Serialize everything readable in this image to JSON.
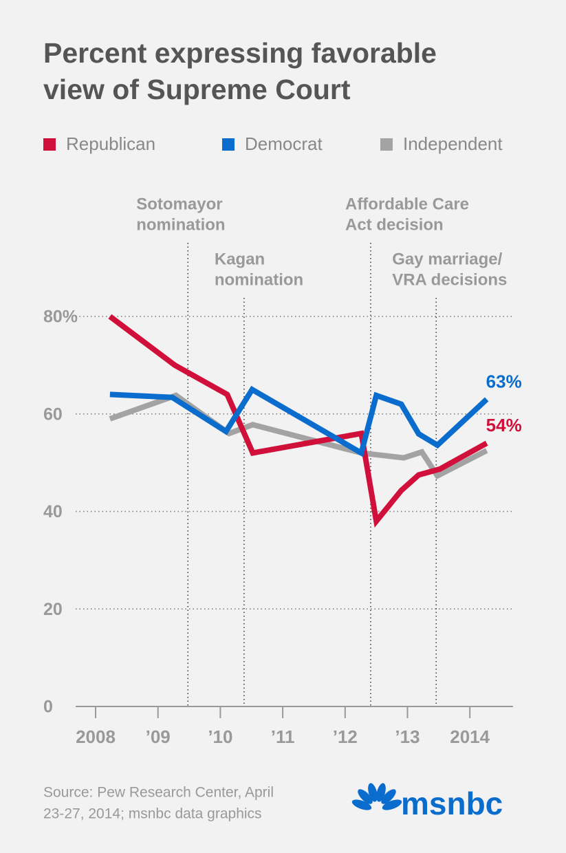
{
  "chart_data": {
    "type": "line",
    "title": [
      "Percent expressing favorable",
      "view of Supreme Court"
    ],
    "xlim": [
      2007.7,
      2014.7
    ],
    "xticks": [
      2008,
      {
        "value": 2009,
        "label": "’09"
      },
      {
        "value": 2010,
        "label": "’10"
      },
      {
        "value": 2011,
        "label": "’11"
      },
      {
        "value": 2012,
        "label": "’12"
      },
      {
        "value": 2013,
        "label": "’13"
      },
      2014
    ],
    "ylim": [
      0,
      80
    ],
    "yticks": [
      0,
      20,
      40,
      60,
      {
        "value": 80,
        "label": "80%"
      }
    ],
    "grid": true,
    "series": [
      {
        "name": "Republican",
        "color": "#d0103a",
        "x": [
          2008.23,
          2009.27,
          2010.11,
          2010.52,
          2012.26,
          2012.5,
          2012.9,
          2013.18,
          2013.52,
          2014.27
        ],
        "values": [
          80,
          70,
          64,
          52,
          56,
          38,
          44.3,
          47.5,
          48.7,
          54
        ],
        "value_labels": [
          null,
          null,
          null,
          null,
          null,
          null,
          null,
          null,
          null,
          "54%"
        ]
      },
      {
        "name": "Democrat",
        "color": "#0a6ccc",
        "x": [
          2008.23,
          2009.23,
          2010.09,
          2010.51,
          2012.26,
          2012.5,
          2012.9,
          2013.18,
          2013.48,
          2014.27
        ],
        "values": [
          64,
          63.4,
          56.4,
          65,
          52,
          63.8,
          62,
          55.9,
          53.6,
          63
        ],
        "value_labels": [
          null,
          null,
          null,
          null,
          null,
          null,
          null,
          null,
          null,
          "63%"
        ]
      },
      {
        "name": "Independent",
        "color": "#a3a3a3",
        "x": [
          2008.23,
          2009.29,
          2010.14,
          2010.52,
          2012.26,
          2012.94,
          2013.23,
          2013.48,
          2014.27
        ],
        "values": [
          59,
          63.8,
          56,
          57.8,
          52,
          51,
          52.2,
          47.3,
          52.5
        ],
        "value_labels": [
          null,
          null,
          null,
          null,
          null,
          null,
          null,
          null,
          null
        ]
      }
    ],
    "annotations": [
      {
        "text": [
          "Sotomayor",
          "nomination"
        ],
        "x": 2009.48
      },
      {
        "text": [
          "Kagan",
          "nomination"
        ],
        "x": 2010.38
      },
      {
        "text": [
          "Affordable Care",
          "Act decision"
        ],
        "x": 2012.41
      },
      {
        "text": [
          "Gay marriage/",
          "VRA decisions"
        ],
        "x": 2013.46
      }
    ],
    "source": [
      "Source: Pew Research Center, April",
      "23-27, 2014; msnbc data graphics"
    ],
    "logo": "msnbc"
  }
}
